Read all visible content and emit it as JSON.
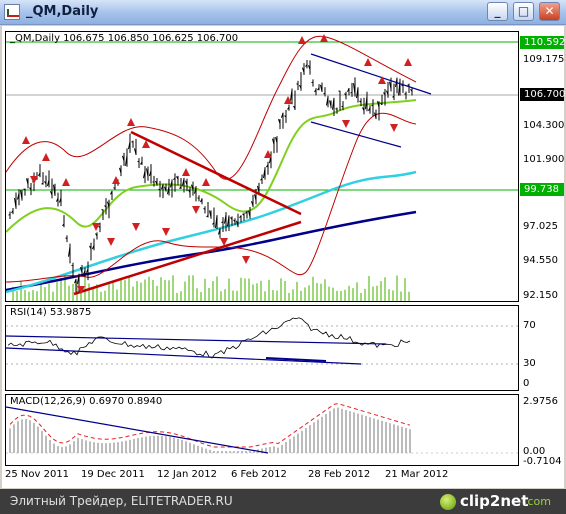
{
  "window": {
    "title": "_QM,Daily",
    "minimize": "_",
    "maximize": "□",
    "close": "✕"
  },
  "main_pane": {
    "label": "_QM,Daily  106.675 106.850 106.625 106.700",
    "y_ticks": [
      "109.175",
      "104.300",
      "101.900",
      "97.025",
      "94.550",
      "92.150"
    ],
    "price_badges": [
      {
        "value": "110.592",
        "color": "#00b000"
      },
      {
        "value": "106.700",
        "color": "#000000"
      },
      {
        "value": "99.738",
        "color": "#00b000"
      }
    ]
  },
  "rsi_pane": {
    "label": "RSI(14) 53.9875",
    "y_ticks": [
      "70",
      "30",
      "0"
    ]
  },
  "macd_pane": {
    "label": "MACD(12,26,9) 0.6970 0.8940",
    "y_ticks": [
      "2.9756",
      "0.00",
      "-0.7104"
    ]
  },
  "x_axis": [
    "25 Nov 2011",
    "19 Dec 2011",
    "12 Jan 2012",
    "6 Feb 2012",
    "28 Feb 2012",
    "21 Mar 2012"
  ],
  "footer": {
    "text": "Элитный Трейдер, ELITETRADER.RU",
    "logo": "clip2net",
    "logo_tld": ".com"
  },
  "chart_data": {
    "type": "line",
    "title": "_QM,Daily",
    "last_quote": {
      "open": 106.675,
      "high": 106.85,
      "low": 106.625,
      "close": 106.7
    },
    "x": [
      "25 Nov 2011",
      "19 Dec 2011",
      "12 Jan 2012",
      "6 Feb 2012",
      "28 Feb 2012",
      "21 Mar 2012"
    ],
    "close_approx": [
      98.0,
      98.5,
      101.5,
      97.0,
      108.5,
      106.7
    ],
    "ylim": [
      92.15,
      110.6
    ],
    "horizontal_lines": [
      110.592,
      106.7,
      99.738
    ],
    "indicators": {
      "RSI(14)": 53.9875,
      "MACD(12,26,9)": [
        0.697,
        0.894
      ]
    },
    "colors": {
      "price": "#000000",
      "bollinger": "#c00000",
      "ma_fast": "#80d020",
      "ma_mid": "#30d0e0",
      "ma_slow": "#00008b",
      "trendline": "#c00000"
    }
  }
}
